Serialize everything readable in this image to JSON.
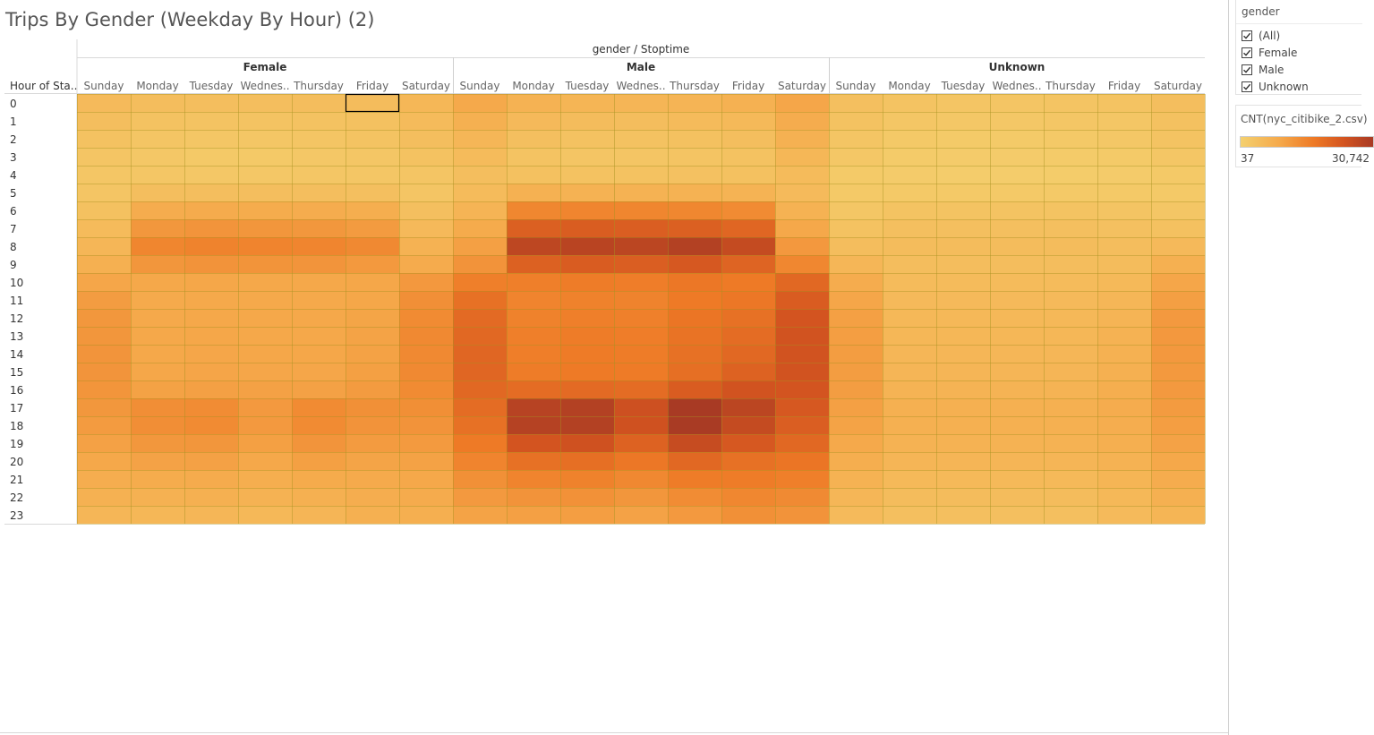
{
  "title": "Trips By Gender (Weekday By Hour) (2)",
  "chart_data": {
    "type": "heatmap",
    "title": "Trips By Gender (Weekday By Hour) (2)",
    "column_header": "gender / Stoptime",
    "row_header": "Hour of Sta..",
    "groups": [
      "Female",
      "Male",
      "Unknown"
    ],
    "day_labels": [
      "Sunday",
      "Monday",
      "Tuesday",
      "Wednes..",
      "Thursday",
      "Friday",
      "Saturday"
    ],
    "hours": [
      "0",
      "1",
      "2",
      "3",
      "4",
      "5",
      "6",
      "7",
      "8",
      "9",
      "10",
      "11",
      "12",
      "13",
      "14",
      "15",
      "16",
      "17",
      "18",
      "19",
      "20",
      "21",
      "22",
      "23"
    ],
    "values": {
      "Female": [
        [
          1300,
          1000,
          900,
          900,
          1000,
          1100,
          1700
        ],
        [
          900,
          600,
          500,
          500,
          600,
          700,
          1200
        ],
        [
          600,
          400,
          300,
          300,
          400,
          500,
          900
        ],
        [
          400,
          250,
          200,
          200,
          250,
          300,
          600
        ],
        [
          300,
          300,
          250,
          250,
          300,
          300,
          400
        ],
        [
          400,
          900,
          900,
          900,
          900,
          800,
          400
        ],
        [
          700,
          3200,
          3400,
          3300,
          3200,
          3000,
          800
        ],
        [
          1200,
          6300,
          6800,
          6600,
          6400,
          5800,
          1400
        ],
        [
          1800,
          9300,
          9800,
          9600,
          9400,
          8600,
          2300
        ],
        [
          2600,
          6600,
          7000,
          6900,
          6800,
          6100,
          3400
        ],
        [
          4200,
          3900,
          4100,
          4000,
          4000,
          4100,
          6200
        ],
        [
          5600,
          3600,
          3800,
          3700,
          3700,
          4100,
          7600
        ],
        [
          6300,
          3800,
          4000,
          3900,
          3900,
          4400,
          8300
        ],
        [
          6600,
          3900,
          4100,
          4000,
          4000,
          4600,
          8600
        ],
        [
          6800,
          4000,
          4200,
          4100,
          4100,
          4800,
          8600
        ],
        [
          6800,
          4100,
          4300,
          4200,
          4200,
          5100,
          8600
        ],
        [
          6700,
          4800,
          5000,
          4900,
          4900,
          5700,
          8400
        ],
        [
          6300,
          7800,
          8200,
          6000,
          8300,
          7500,
          7700
        ],
        [
          5800,
          7800,
          8300,
          6000,
          8400,
          7000,
          7000
        ],
        [
          4900,
          6300,
          6600,
          5100,
          6800,
          5800,
          5900
        ],
        [
          3900,
          4700,
          4900,
          4000,
          5100,
          4500,
          4800
        ],
        [
          3100,
          3300,
          3400,
          3000,
          3500,
          3600,
          4000
        ],
        [
          2500,
          2500,
          2600,
          2300,
          2700,
          3100,
          3400
        ],
        [
          1800,
          1700,
          1800,
          1600,
          1900,
          2700,
          2800
        ]
      ],
      "Male": [
        [
          3700,
          2400,
          2000,
          1900,
          2100,
          2500,
          4200
        ],
        [
          2600,
          1400,
          1100,
          1000,
          1200,
          1500,
          3200
        ],
        [
          1800,
          800,
          600,
          600,
          700,
          900,
          2500
        ],
        [
          1200,
          500,
          400,
          400,
          450,
          600,
          1700
        ],
        [
          900,
          700,
          600,
          600,
          650,
          700,
          1200
        ],
        [
          1200,
          2500,
          2400,
          2400,
          2400,
          2200,
          1300
        ],
        [
          2100,
          9000,
          9400,
          9200,
          9000,
          8400,
          2300
        ],
        [
          3500,
          17600,
          18300,
          18000,
          17600,
          16000,
          4000
        ],
        [
          5000,
          25600,
          26500,
          26000,
          28000,
          24000,
          6200
        ],
        [
          7000,
          17300,
          18500,
          18000,
          19500,
          16500,
          9000
        ],
        [
          10500,
          10500,
          11000,
          10800,
          12000,
          11500,
          15500
        ],
        [
          13500,
          9500,
          10000,
          9800,
          11500,
          12000,
          18500
        ],
        [
          15000,
          10000,
          10500,
          10300,
          12500,
          13500,
          20500
        ],
        [
          15500,
          10500,
          11000,
          10800,
          13000,
          14500,
          21000
        ],
        [
          16000,
          10700,
          11300,
          11000,
          13500,
          15500,
          21000
        ],
        [
          16000,
          11000,
          11500,
          11300,
          14000,
          17000,
          21000
        ],
        [
          15500,
          14500,
          15000,
          14500,
          18500,
          21000,
          20500
        ],
        [
          14500,
          27000,
          28000,
          22000,
          30742,
          26000,
          19500
        ],
        [
          13500,
          27500,
          28000,
          21500,
          30500,
          24000,
          18000
        ],
        [
          11500,
          20500,
          21500,
          17000,
          23500,
          19500,
          15500
        ],
        [
          9500,
          13500,
          14000,
          12000,
          15500,
          13500,
          12500
        ],
        [
          7500,
          9500,
          10000,
          8800,
          11000,
          11000,
          10500
        ],
        [
          6000,
          7000,
          7300,
          6500,
          8200,
          9000,
          8500
        ],
        [
          4600,
          5000,
          5300,
          4700,
          6000,
          7500,
          7000
        ]
      ],
      "Unknown": [
        [
          800,
          500,
          400,
          400,
          450,
          500,
          900
        ],
        [
          600,
          300,
          250,
          250,
          300,
          350,
          700
        ],
        [
          400,
          200,
          150,
          150,
          200,
          250,
          500
        ],
        [
          250,
          120,
          100,
          100,
          120,
          150,
          350
        ],
        [
          150,
          100,
          80,
          80,
          90,
          100,
          200
        ],
        [
          200,
          200,
          200,
          200,
          200,
          200,
          200
        ],
        [
          300,
          500,
          500,
          500,
          500,
          450,
          350
        ],
        [
          600,
          800,
          800,
          800,
          800,
          750,
          700
        ],
        [
          1000,
          1100,
          1100,
          1100,
          1100,
          1050,
          1400
        ],
        [
          1800,
          1000,
          1000,
          1000,
          1000,
          1100,
          2600
        ],
        [
          3200,
          1200,
          1200,
          1200,
          1200,
          1500,
          4200
        ],
        [
          4200,
          1400,
          1400,
          1400,
          1400,
          1800,
          5200
        ],
        [
          5000,
          1600,
          1600,
          1600,
          1600,
          2100,
          6000
        ],
        [
          5300,
          1700,
          1700,
          1700,
          1700,
          2300,
          6200
        ],
        [
          5500,
          1800,
          1800,
          1800,
          1800,
          2500,
          6200
        ],
        [
          5500,
          1900,
          1900,
          1900,
          1900,
          2700,
          6100
        ],
        [
          5400,
          2200,
          2200,
          2200,
          2200,
          3000,
          6000
        ],
        [
          5000,
          2600,
          2600,
          2600,
          2600,
          3200,
          5700
        ],
        [
          4600,
          2600,
          2600,
          2600,
          2600,
          3100,
          5300
        ],
        [
          3800,
          2300,
          2300,
          2300,
          2300,
          2800,
          4700
        ],
        [
          3000,
          1900,
          1900,
          1900,
          1900,
          2400,
          3900
        ],
        [
          2300,
          1500,
          1500,
          1500,
          1500,
          2000,
          3200
        ],
        [
          1800,
          1100,
          1100,
          1100,
          1100,
          1600,
          2600
        ],
        [
          1300,
          800,
          800,
          800,
          800,
          1300,
          2000
        ]
      ]
    },
    "color_min": 37,
    "color_max": 30742,
    "colors": [
      "#f4d06e",
      "#f5a84a",
      "#ee7a26",
      "#d35420",
      "#a83a24"
    ],
    "selected_cell": {
      "group": "Female",
      "day": "Friday",
      "hour": "0"
    }
  },
  "filter": {
    "title": "gender",
    "options": [
      {
        "label": "(All)",
        "checked": true
      },
      {
        "label": "Female",
        "checked": true
      },
      {
        "label": "Male",
        "checked": true
      },
      {
        "label": "Unknown",
        "checked": true
      }
    ]
  },
  "legend": {
    "title": "CNT(nyc_citibike_2.csv)",
    "min_label": "37",
    "max_label": "30,742"
  }
}
